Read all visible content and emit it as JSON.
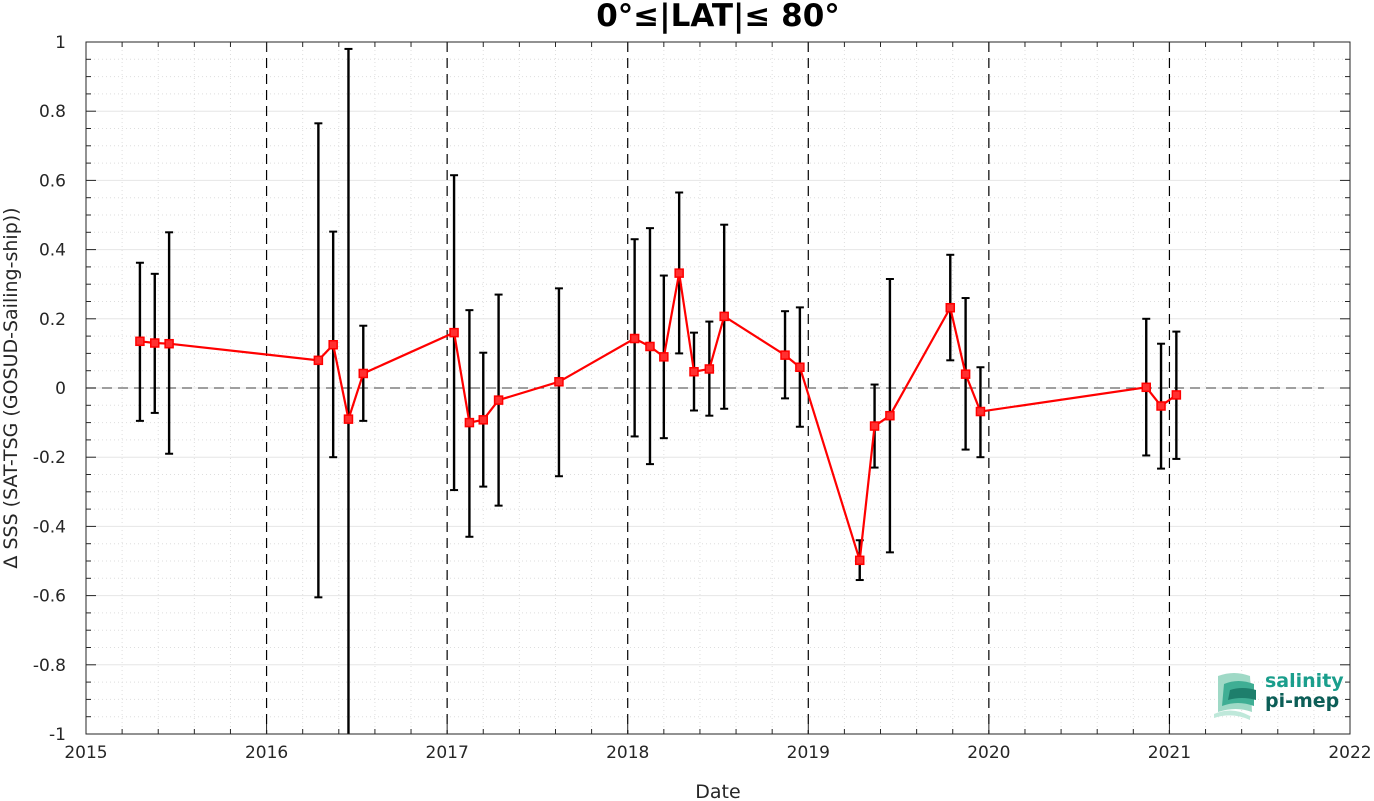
{
  "chart_data": {
    "type": "line",
    "title": "0°≤|LAT|≤ 80°",
    "xlabel": "Date",
    "ylabel": "Δ SSS (SAT-TSG (GOSUD-Sailing-ship))",
    "xlim": [
      "2015-01-01",
      "2022-01-01"
    ],
    "ylim": [
      -1,
      1
    ],
    "xticks": [
      "2015",
      "2016",
      "2017",
      "2018",
      "2019",
      "2020",
      "2021",
      "2022"
    ],
    "yticks": [
      "-1",
      "-0.8",
      "-0.6",
      "-0.4",
      "-0.2",
      "0",
      "0.2",
      "0.4",
      "0.6",
      "0.8",
      "1"
    ],
    "grid": true,
    "minor_grid": true,
    "zero_line": true,
    "year_lines": [
      "2016-01-01",
      "2017-01-01",
      "2018-01-01",
      "2019-01-01",
      "2020-01-01",
      "2021-01-01"
    ],
    "line_color": "#ff0000",
    "errorbar_color": "#000000",
    "series": [
      {
        "x": [
          "2015-04-20",
          "2015-05-20",
          "2015-06-18",
          "2016-04-15",
          "2016-05-15",
          "2016-06-15",
          "2016-07-15",
          "2017-01-15",
          "2017-02-15",
          "2017-03-15",
          "2017-04-15",
          "2017-08-15",
          "2018-01-15",
          "2018-02-15",
          "2018-03-15",
          "2018-04-15",
          "2018-05-15",
          "2018-06-15",
          "2018-07-15",
          "2018-11-15",
          "2018-12-15",
          "2019-04-15",
          "2019-05-15",
          "2019-06-15",
          "2019-10-15",
          "2019-11-15",
          "2019-12-15",
          "2020-11-15",
          "2020-12-15",
          "2021-01-15"
        ],
        "y": [
          0.135,
          0.13,
          0.128,
          0.08,
          0.125,
          -0.09,
          0.042,
          0.16,
          -0.1,
          -0.092,
          -0.035,
          0.018,
          0.143,
          0.12,
          0.09,
          0.332,
          0.047,
          0.055,
          0.207,
          0.095,
          0.06,
          -0.498,
          -0.11,
          -0.08,
          0.232,
          0.04,
          -0.068,
          0.002,
          -0.052,
          -0.02
        ],
        "err_low": [
          -0.095,
          -0.072,
          -0.19,
          -0.605,
          -0.2,
          -1.0,
          -0.095,
          -0.295,
          -0.43,
          -0.285,
          -0.34,
          -0.255,
          -0.14,
          -0.22,
          -0.145,
          0.1,
          -0.065,
          -0.08,
          -0.06,
          -0.03,
          -0.112,
          -0.555,
          -0.23,
          -0.475,
          0.08,
          -0.178,
          -0.2,
          -0.195,
          -0.233,
          -0.205
        ],
        "err_high": [
          0.362,
          0.33,
          0.45,
          0.765,
          0.452,
          0.98,
          0.18,
          0.615,
          0.225,
          0.102,
          0.27,
          0.288,
          0.43,
          0.462,
          0.325,
          0.565,
          0.16,
          0.192,
          0.472,
          0.222,
          0.233,
          -0.44,
          0.01,
          0.315,
          0.385,
          0.26,
          0.06,
          0.2,
          0.128,
          0.163
        ]
      }
    ]
  },
  "logo": {
    "line1": "salinity",
    "line2": "pi-mep"
  }
}
